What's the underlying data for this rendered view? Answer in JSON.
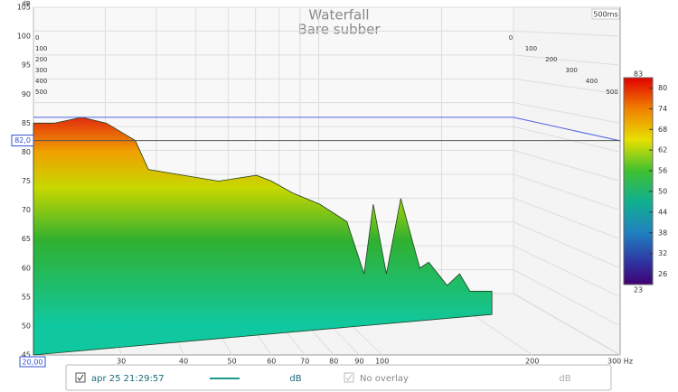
{
  "chart_data": {
    "type": "waterfall",
    "title": "Waterfall",
    "subtitle": "Bare subber",
    "y_label": "dB",
    "time_range_label": "500ms",
    "log_x": true,
    "xlim": [
      20,
      300
    ],
    "xticks": [
      30,
      40,
      50,
      60,
      70,
      80,
      90,
      100,
      200,
      {
        "value": 300,
        "label": "300 Hz"
      }
    ],
    "ylim": [
      45,
      105
    ],
    "yticks": [
      45,
      50,
      55,
      60,
      65,
      70,
      75,
      80,
      85,
      90,
      95,
      100,
      105
    ],
    "time_lim": [
      0,
      500
    ],
    "time_ticks": [
      0,
      100,
      200,
      300,
      400,
      500
    ],
    "x_cursor": {
      "value": 20,
      "label": "20,00"
    },
    "y_cursor": {
      "value": 82,
      "label": "82,0"
    },
    "reference_level": 86,
    "reference_color": "#5060e0",
    "colorbar": {
      "lim": [
        23,
        83
      ],
      "ticks": [
        83,
        80,
        74,
        68,
        62,
        56,
        50,
        44,
        38,
        32,
        26,
        23
      ]
    },
    "series": [
      {
        "name": "apr 25 21:29:57",
        "color": "#1a9a8a",
        "x": [
          20,
          22,
          25,
          28,
          32,
          34,
          40,
          47,
          56,
          60,
          66,
          75,
          85,
          92,
          96,
          102,
          109,
          119,
          124,
          135,
          143,
          150,
          166
        ],
        "values": [
          85,
          85,
          86,
          85,
          82,
          77,
          76,
          75,
          76,
          75,
          73,
          71,
          68,
          59,
          71,
          59,
          72,
          60,
          61,
          57,
          59,
          56,
          56
        ]
      }
    ],
    "series_unit": "dB",
    "overlay": "No overlay",
    "overlay_unit": "dB"
  }
}
